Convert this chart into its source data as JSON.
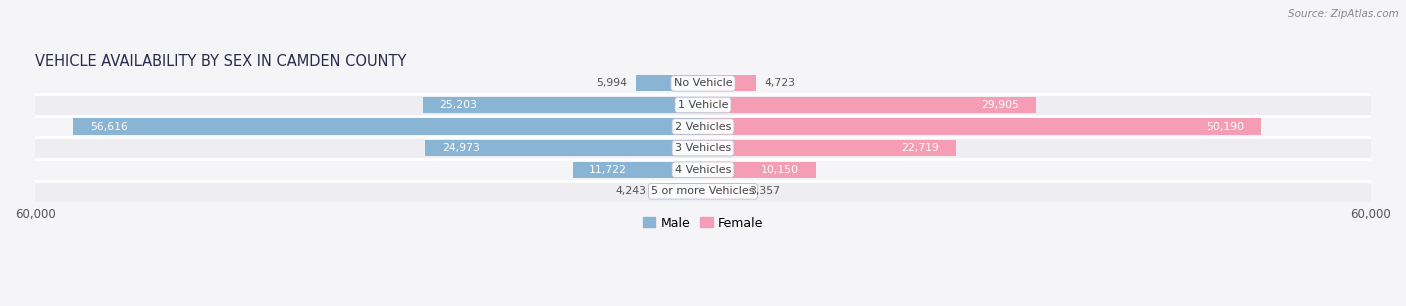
{
  "title": "VEHICLE AVAILABILITY BY SEX IN CAMDEN COUNTY",
  "source": "Source: ZipAtlas.com",
  "categories": [
    "No Vehicle",
    "1 Vehicle",
    "2 Vehicles",
    "3 Vehicles",
    "4 Vehicles",
    "5 or more Vehicles"
  ],
  "male_values": [
    5994,
    25203,
    56616,
    24973,
    11722,
    4243
  ],
  "female_values": [
    4723,
    29905,
    50190,
    22719,
    10150,
    3357
  ],
  "male_color": "#8ab4d4",
  "female_color": "#f49db5",
  "max_val": 60000,
  "row_bg_even": "#ededf2",
  "row_bg_odd": "#f5f5f8",
  "title_fontsize": 10.5,
  "label_fontsize": 8.0,
  "val_fontsize": 7.8,
  "legend_male": "Male",
  "legend_female": "Female"
}
